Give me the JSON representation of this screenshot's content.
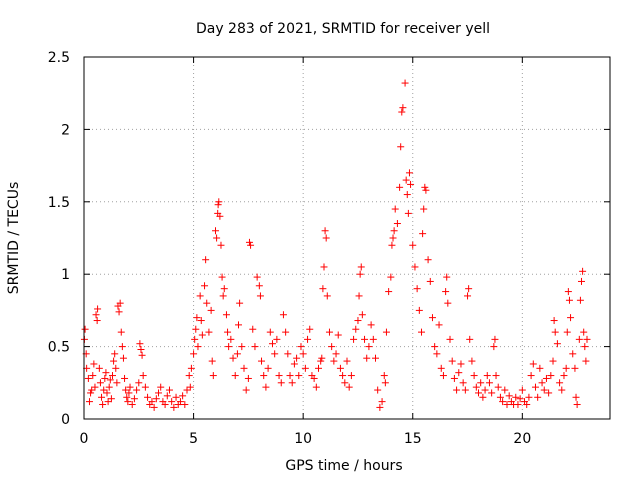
{
  "chart_data": {
    "type": "scatter",
    "title": "Day 283 of 2021, SRMTID for receiver yell",
    "xlabel": "GPS time / hours",
    "ylabel": "SRMTID / TECUs",
    "xlim": [
      0,
      24
    ],
    "ylim": [
      0,
      2.5
    ],
    "xticks": [
      0,
      5,
      10,
      15,
      20
    ],
    "xtick_labels": [
      "0",
      "5",
      "10",
      "15",
      "20"
    ],
    "yticks": [
      0,
      0.5,
      1,
      1.5,
      2,
      2.5
    ],
    "ytick_labels": [
      "0",
      "0.5",
      "1",
      "1.5",
      "2",
      "2.5"
    ],
    "grid": true,
    "marker": "+",
    "series": [
      {
        "name": "SRMTID",
        "color": "#ff0000",
        "points": [
          [
            0.02,
            0.55
          ],
          [
            0.05,
            0.62
          ],
          [
            0.1,
            0.45
          ],
          [
            0.12,
            0.35
          ],
          [
            0.2,
            0.28
          ],
          [
            0.25,
            0.12
          ],
          [
            0.3,
            0.18
          ],
          [
            0.35,
            0.2
          ],
          [
            0.4,
            0.3
          ],
          [
            0.45,
            0.38
          ],
          [
            0.5,
            0.22
          ],
          [
            0.55,
            0.72
          ],
          [
            0.6,
            0.68
          ],
          [
            0.62,
            0.76
          ],
          [
            0.7,
            0.35
          ],
          [
            0.75,
            0.25
          ],
          [
            0.8,
            0.15
          ],
          [
            0.85,
            0.1
          ],
          [
            0.9,
            0.2
          ],
          [
            0.95,
            0.28
          ],
          [
            1.0,
            0.32
          ],
          [
            1.05,
            0.18
          ],
          [
            1.1,
            0.12
          ],
          [
            1.15,
            0.22
          ],
          [
            1.2,
            0.27
          ],
          [
            1.25,
            0.14
          ],
          [
            1.3,
            0.3
          ],
          [
            1.35,
            0.4
          ],
          [
            1.4,
            0.45
          ],
          [
            1.45,
            0.35
          ],
          [
            1.5,
            0.25
          ],
          [
            1.55,
            0.78
          ],
          [
            1.6,
            0.74
          ],
          [
            1.65,
            0.8
          ],
          [
            1.7,
            0.6
          ],
          [
            1.75,
            0.5
          ],
          [
            1.8,
            0.42
          ],
          [
            1.85,
            0.28
          ],
          [
            1.9,
            0.2
          ],
          [
            1.95,
            0.15
          ],
          [
            2.0,
            0.12
          ],
          [
            2.05,
            0.18
          ],
          [
            2.1,
            0.22
          ],
          [
            2.2,
            0.1
          ],
          [
            2.3,
            0.14
          ],
          [
            2.4,
            0.2
          ],
          [
            2.5,
            0.25
          ],
          [
            2.55,
            0.52
          ],
          [
            2.6,
            0.48
          ],
          [
            2.65,
            0.44
          ],
          [
            2.7,
            0.3
          ],
          [
            2.8,
            0.22
          ],
          [
            2.9,
            0.15
          ],
          [
            3.0,
            0.1
          ],
          [
            3.1,
            0.12
          ],
          [
            3.2,
            0.08
          ],
          [
            3.3,
            0.14
          ],
          [
            3.4,
            0.18
          ],
          [
            3.5,
            0.22
          ],
          [
            3.6,
            0.12
          ],
          [
            3.7,
            0.1
          ],
          [
            3.8,
            0.16
          ],
          [
            3.9,
            0.2
          ],
          [
            4.0,
            0.12
          ],
          [
            4.1,
            0.08
          ],
          [
            4.2,
            0.15
          ],
          [
            4.3,
            0.1
          ],
          [
            4.4,
            0.12
          ],
          [
            4.5,
            0.16
          ],
          [
            4.6,
            0.1
          ],
          [
            4.7,
            0.2
          ],
          [
            4.8,
            0.3
          ],
          [
            4.85,
            0.22
          ],
          [
            4.9,
            0.35
          ],
          [
            5.0,
            0.45
          ],
          [
            5.05,
            0.55
          ],
          [
            5.1,
            0.62
          ],
          [
            5.15,
            0.7
          ],
          [
            5.2,
            0.5
          ],
          [
            5.3,
            0.85
          ],
          [
            5.35,
            0.68
          ],
          [
            5.4,
            0.58
          ],
          [
            5.5,
            0.92
          ],
          [
            5.55,
            1.1
          ],
          [
            5.6,
            0.8
          ],
          [
            5.7,
            0.6
          ],
          [
            5.8,
            0.75
          ],
          [
            5.85,
            0.4
          ],
          [
            5.9,
            0.3
          ],
          [
            6.0,
            1.3
          ],
          [
            6.05,
            1.25
          ],
          [
            6.1,
            1.42
          ],
          [
            6.12,
            1.48
          ],
          [
            6.15,
            1.5
          ],
          [
            6.2,
            1.4
          ],
          [
            6.25,
            1.2
          ],
          [
            6.3,
            0.98
          ],
          [
            6.35,
            0.85
          ],
          [
            6.4,
            0.9
          ],
          [
            6.5,
            0.72
          ],
          [
            6.55,
            0.6
          ],
          [
            6.6,
            0.5
          ],
          [
            6.7,
            0.55
          ],
          [
            6.8,
            0.42
          ],
          [
            6.9,
            0.3
          ],
          [
            7.0,
            0.45
          ],
          [
            7.05,
            0.65
          ],
          [
            7.1,
            0.8
          ],
          [
            7.2,
            0.5
          ],
          [
            7.3,
            0.35
          ],
          [
            7.4,
            0.2
          ],
          [
            7.5,
            0.28
          ],
          [
            7.55,
            1.22
          ],
          [
            7.6,
            1.2
          ],
          [
            7.7,
            0.62
          ],
          [
            7.8,
            0.5
          ],
          [
            7.9,
            0.98
          ],
          [
            8.0,
            0.92
          ],
          [
            8.05,
            0.85
          ],
          [
            8.1,
            0.4
          ],
          [
            8.2,
            0.3
          ],
          [
            8.3,
            0.22
          ],
          [
            8.4,
            0.35
          ],
          [
            8.5,
            0.6
          ],
          [
            8.6,
            0.52
          ],
          [
            8.7,
            0.45
          ],
          [
            8.8,
            0.55
          ],
          [
            8.9,
            0.3
          ],
          [
            9.0,
            0.25
          ],
          [
            9.1,
            0.72
          ],
          [
            9.2,
            0.6
          ],
          [
            9.3,
            0.45
          ],
          [
            9.4,
            0.3
          ],
          [
            9.5,
            0.25
          ],
          [
            9.6,
            0.38
          ],
          [
            9.7,
            0.42
          ],
          [
            9.8,
            0.3
          ],
          [
            9.9,
            0.5
          ],
          [
            10.0,
            0.45
          ],
          [
            10.1,
            0.35
          ],
          [
            10.2,
            0.55
          ],
          [
            10.3,
            0.62
          ],
          [
            10.4,
            0.3
          ],
          [
            10.5,
            0.28
          ],
          [
            10.6,
            0.22
          ],
          [
            10.7,
            0.35
          ],
          [
            10.8,
            0.4
          ],
          [
            10.85,
            0.42
          ],
          [
            10.9,
            0.9
          ],
          [
            10.95,
            1.05
          ],
          [
            11.0,
            1.3
          ],
          [
            11.05,
            1.25
          ],
          [
            11.1,
            0.85
          ],
          [
            11.2,
            0.6
          ],
          [
            11.3,
            0.5
          ],
          [
            11.4,
            0.4
          ],
          [
            11.5,
            0.45
          ],
          [
            11.6,
            0.58
          ],
          [
            11.7,
            0.35
          ],
          [
            11.8,
            0.3
          ],
          [
            11.9,
            0.25
          ],
          [
            12.0,
            0.4
          ],
          [
            12.1,
            0.22
          ],
          [
            12.2,
            0.3
          ],
          [
            12.3,
            0.55
          ],
          [
            12.4,
            0.62
          ],
          [
            12.5,
            0.68
          ],
          [
            12.55,
            0.85
          ],
          [
            12.6,
            1.0
          ],
          [
            12.65,
            1.05
          ],
          [
            12.7,
            0.72
          ],
          [
            12.8,
            0.55
          ],
          [
            12.9,
            0.42
          ],
          [
            13.0,
            0.5
          ],
          [
            13.1,
            0.65
          ],
          [
            13.2,
            0.55
          ],
          [
            13.3,
            0.42
          ],
          [
            13.4,
            0.2
          ],
          [
            13.5,
            0.08
          ],
          [
            13.6,
            0.12
          ],
          [
            13.7,
            0.3
          ],
          [
            13.75,
            0.25
          ],
          [
            13.8,
            0.6
          ],
          [
            13.9,
            0.88
          ],
          [
            14.0,
            0.98
          ],
          [
            14.05,
            1.2
          ],
          [
            14.1,
            1.25
          ],
          [
            14.15,
            1.3
          ],
          [
            14.2,
            1.45
          ],
          [
            14.3,
            1.35
          ],
          [
            14.4,
            1.6
          ],
          [
            14.45,
            1.88
          ],
          [
            14.5,
            2.12
          ],
          [
            14.55,
            2.15
          ],
          [
            14.65,
            2.32
          ],
          [
            14.7,
            1.65
          ],
          [
            14.75,
            1.55
          ],
          [
            14.8,
            1.42
          ],
          [
            14.85,
            1.7
          ],
          [
            14.9,
            1.62
          ],
          [
            15.0,
            1.2
          ],
          [
            15.1,
            1.05
          ],
          [
            15.2,
            0.9
          ],
          [
            15.3,
            0.75
          ],
          [
            15.4,
            0.6
          ],
          [
            15.45,
            1.28
          ],
          [
            15.5,
            1.45
          ],
          [
            15.55,
            1.6
          ],
          [
            15.6,
            1.58
          ],
          [
            15.7,
            1.1
          ],
          [
            15.8,
            0.95
          ],
          [
            15.9,
            0.7
          ],
          [
            16.0,
            0.5
          ],
          [
            16.1,
            0.45
          ],
          [
            16.2,
            0.65
          ],
          [
            16.3,
            0.35
          ],
          [
            16.4,
            0.3
          ],
          [
            16.5,
            0.88
          ],
          [
            16.55,
            0.98
          ],
          [
            16.6,
            0.8
          ],
          [
            16.7,
            0.55
          ],
          [
            16.8,
            0.4
          ],
          [
            16.9,
            0.28
          ],
          [
            17.0,
            0.2
          ],
          [
            17.1,
            0.32
          ],
          [
            17.2,
            0.38
          ],
          [
            17.3,
            0.25
          ],
          [
            17.4,
            0.2
          ],
          [
            17.5,
            0.85
          ],
          [
            17.55,
            0.9
          ],
          [
            17.6,
            0.55
          ],
          [
            17.7,
            0.4
          ],
          [
            17.8,
            0.3
          ],
          [
            17.9,
            0.22
          ],
          [
            18.0,
            0.18
          ],
          [
            18.1,
            0.25
          ],
          [
            18.2,
            0.15
          ],
          [
            18.3,
            0.2
          ],
          [
            18.4,
            0.3
          ],
          [
            18.5,
            0.25
          ],
          [
            18.6,
            0.18
          ],
          [
            18.7,
            0.5
          ],
          [
            18.75,
            0.55
          ],
          [
            18.8,
            0.3
          ],
          [
            18.9,
            0.22
          ],
          [
            19.0,
            0.15
          ],
          [
            19.1,
            0.12
          ],
          [
            19.2,
            0.2
          ],
          [
            19.3,
            0.1
          ],
          [
            19.4,
            0.16
          ],
          [
            19.5,
            0.12
          ],
          [
            19.6,
            0.1
          ],
          [
            19.7,
            0.15
          ],
          [
            19.8,
            0.1
          ],
          [
            19.9,
            0.14
          ],
          [
            20.0,
            0.2
          ],
          [
            20.1,
            0.12
          ],
          [
            20.2,
            0.1
          ],
          [
            20.3,
            0.15
          ],
          [
            20.4,
            0.3
          ],
          [
            20.5,
            0.38
          ],
          [
            20.6,
            0.22
          ],
          [
            20.7,
            0.15
          ],
          [
            20.8,
            0.35
          ],
          [
            20.9,
            0.25
          ],
          [
            21.0,
            0.2
          ],
          [
            21.1,
            0.28
          ],
          [
            21.2,
            0.18
          ],
          [
            21.3,
            0.3
          ],
          [
            21.4,
            0.4
          ],
          [
            21.45,
            0.68
          ],
          [
            21.5,
            0.6
          ],
          [
            21.6,
            0.52
          ],
          [
            21.7,
            0.25
          ],
          [
            21.8,
            0.2
          ],
          [
            21.9,
            0.3
          ],
          [
            22.0,
            0.35
          ],
          [
            22.05,
            0.6
          ],
          [
            22.1,
            0.88
          ],
          [
            22.15,
            0.82
          ],
          [
            22.2,
            0.7
          ],
          [
            22.3,
            0.45
          ],
          [
            22.4,
            0.35
          ],
          [
            22.45,
            0.15
          ],
          [
            22.5,
            0.1
          ],
          [
            22.6,
            0.55
          ],
          [
            22.65,
            0.82
          ],
          [
            22.7,
            0.95
          ],
          [
            22.75,
            1.02
          ],
          [
            22.8,
            0.6
          ],
          [
            22.85,
            0.5
          ],
          [
            22.9,
            0.4
          ],
          [
            22.95,
            0.55
          ]
        ]
      }
    ]
  }
}
